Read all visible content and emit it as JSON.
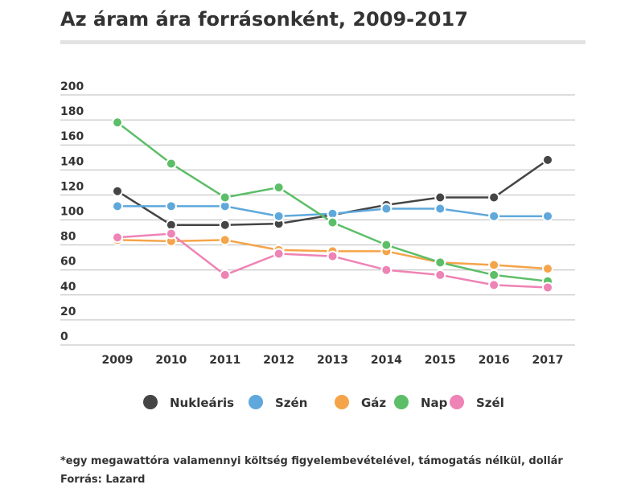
{
  "chart_data": {
    "type": "line",
    "title": "Az áram ára forrásonként, 2009-2017",
    "categories": [
      "2009",
      "2010",
      "2011",
      "2012",
      "2013",
      "2014",
      "2015",
      "2016",
      "2017"
    ],
    "series": [
      {
        "name": "Nukleáris",
        "color": "#454545",
        "values": [
          123,
          96,
          96,
          97,
          104,
          112,
          118,
          118,
          148
        ]
      },
      {
        "name": "Szén",
        "color": "#5fa8dc",
        "values": [
          111,
          111,
          111,
          103,
          105,
          109,
          109,
          103,
          103
        ]
      },
      {
        "name": "Gáz",
        "color": "#f5a44a",
        "values": [
          84,
          83,
          84,
          76,
          75,
          75,
          66,
          64,
          61
        ]
      },
      {
        "name": "Nap",
        "color": "#5dbe68",
        "values": [
          178,
          145,
          118,
          126,
          98,
          80,
          66,
          56,
          51
        ]
      },
      {
        "name": "Szél",
        "color": "#ee83b5",
        "values": [
          86,
          89,
          56,
          73,
          71,
          60,
          56,
          48,
          46
        ]
      }
    ],
    "ylim": [
      0,
      200
    ],
    "yticks": [
      0,
      20,
      40,
      60,
      80,
      100,
      120,
      140,
      160,
      180,
      200
    ],
    "grid": true,
    "notes": [
      "*egy megawattóra valamennyi költség figyelembevételével, támogatás nélkül, dollár",
      "Forrás: Lazard"
    ]
  }
}
